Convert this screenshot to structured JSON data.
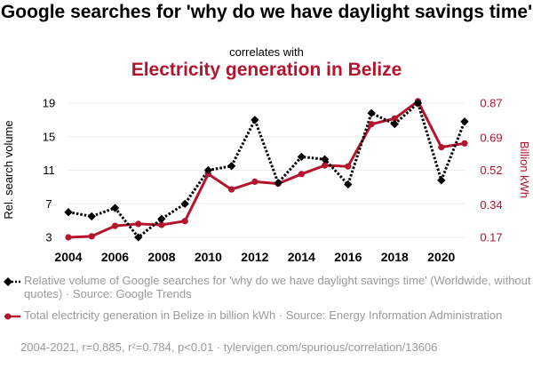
{
  "header": {
    "title": "Google searches for 'why do we have daylight savings time'",
    "subtitle": "correlates with",
    "title2": "Electricity generation in Belize"
  },
  "chart_data": {
    "type": "line",
    "x": [
      2004,
      2005,
      2006,
      2007,
      2008,
      2009,
      2010,
      2011,
      2012,
      2013,
      2014,
      2015,
      2016,
      2017,
      2018,
      2019,
      2020,
      2021
    ],
    "xticks": [
      2004,
      2006,
      2008,
      2010,
      2012,
      2014,
      2016,
      2018,
      2020
    ],
    "xlim": [
      2004,
      2021
    ],
    "series": [
      {
        "name": "Relative volume of Google searches",
        "axis": "left",
        "color": "#000000",
        "values": [
          6,
          5.5,
          6.5,
          3,
          5.2,
          7,
          11,
          11.5,
          17,
          9.5,
          12.6,
          12.3,
          9.3,
          17.8,
          16.5,
          19,
          9.8,
          16.8
        ]
      },
      {
        "name": "Total electricity generation in Belize",
        "axis": "right",
        "color": "#b3152e",
        "values": [
          0.17,
          0.175,
          0.23,
          0.24,
          0.235,
          0.255,
          0.5,
          0.42,
          0.46,
          0.45,
          0.5,
          0.545,
          0.54,
          0.76,
          0.79,
          0.88,
          0.64,
          0.66
        ]
      }
    ],
    "ylabel": "Rel. search volume",
    "y2label": "Billion kWh",
    "yticks": [
      3,
      7,
      11,
      15,
      19
    ],
    "ylim": [
      3,
      19
    ],
    "y2ticks": [
      "0.17",
      "0.34",
      "0.52",
      "0.69",
      "0.87"
    ],
    "y2lim": [
      0.17,
      0.87
    ],
    "grid": true
  },
  "legend": [
    {
      "text": "Relative volume of Google searches for 'why do we have daylight savings time' (Worldwide, without quotes) · Source: Google Trends",
      "color": "#000000",
      "style": "dotted"
    },
    {
      "text": "Total electricity generation in Belize in billion kWh · Source: Energy Information Administration",
      "color": "#b3152e",
      "style": "solid"
    }
  ],
  "footer": "2004-2021, r=0.885, r²=0.784, p<0.01 · tylervigen.com/spurious/correlation/13606"
}
